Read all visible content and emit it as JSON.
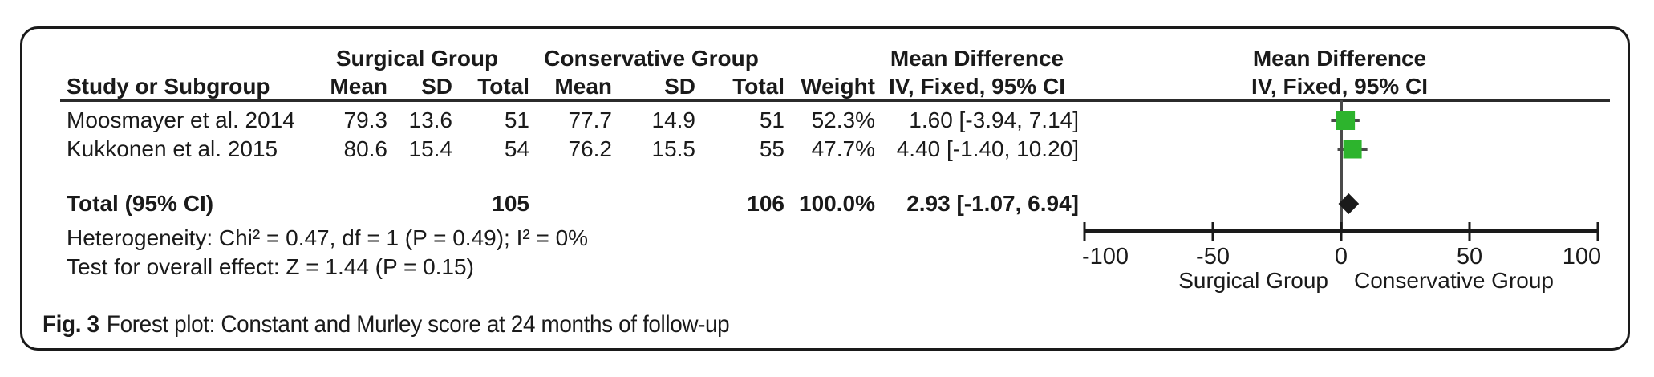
{
  "figure": {
    "caption_label": "Fig. 3",
    "caption_text": "Forest plot: Constant and Murley score at 24 months of follow-up"
  },
  "table": {
    "group_headers": {
      "surgical": "Surgical Group",
      "conservative": "Conservative Group",
      "mean_difference_text": "Mean Difference",
      "mean_difference_plot": "Mean Difference"
    },
    "column_headers": {
      "study": "Study or Subgroup",
      "mean1": "Mean",
      "sd1": "SD",
      "total1": "Total",
      "mean2": "Mean",
      "sd2": "SD",
      "total2": "Total",
      "weight": "Weight",
      "ci_text": "IV, Fixed, 95% CI",
      "ci_plot": "IV, Fixed, 95% CI"
    },
    "rows": [
      {
        "study": "Moosmayer et al. 2014",
        "mean1": "79.3",
        "sd1": "13.6",
        "total1": "51",
        "mean2": "77.7",
        "sd2": "14.9",
        "total2": "51",
        "weight": "52.3%",
        "ci": "1.60 [-3.94, 7.14]"
      },
      {
        "study": "Kukkonen et al. 2015",
        "mean1": "80.6",
        "sd1": "15.4",
        "total1": "54",
        "mean2": "76.2",
        "sd2": "15.5",
        "total2": "55",
        "weight": "47.7%",
        "ci": "4.40 [-1.40, 10.20]"
      }
    ],
    "total_row": {
      "label": "Total (95% CI)",
      "total1": "105",
      "total2": "106",
      "weight": "100.0%",
      "ci": "2.93 [-1.07, 6.94]"
    },
    "heterogeneity": "Heterogeneity: Chi² = 0.47, df = 1 (P = 0.49); I² = 0%",
    "overall_effect": "Test for overall effect: Z = 1.44 (P = 0.15)"
  },
  "chart_data": {
    "type": "forest",
    "effect_measure": "Mean Difference, IV, Fixed, 95% CI",
    "x_axis": {
      "min": -100,
      "max": 100,
      "ticks": [
        -100,
        -50,
        0,
        50,
        100
      ],
      "left_label": "Surgical Group",
      "right_label": "Conservative Group"
    },
    "studies": [
      {
        "name": "Moosmayer et al. 2014",
        "effect": 1.6,
        "ci_low": -3.94,
        "ci_high": 7.14,
        "weight_pct": 52.3
      },
      {
        "name": "Kukkonen et al. 2015",
        "effect": 4.4,
        "ci_low": -1.4,
        "ci_high": 10.2,
        "weight_pct": 47.7
      }
    ],
    "total": {
      "effect": 2.93,
      "ci_low": -1.07,
      "ci_high": 6.94
    },
    "marker_color": "#2db42d",
    "line_color": "#4a4a4a",
    "axis_color": "#1a1a1a",
    "diamond_color": "#1a1a1a"
  }
}
